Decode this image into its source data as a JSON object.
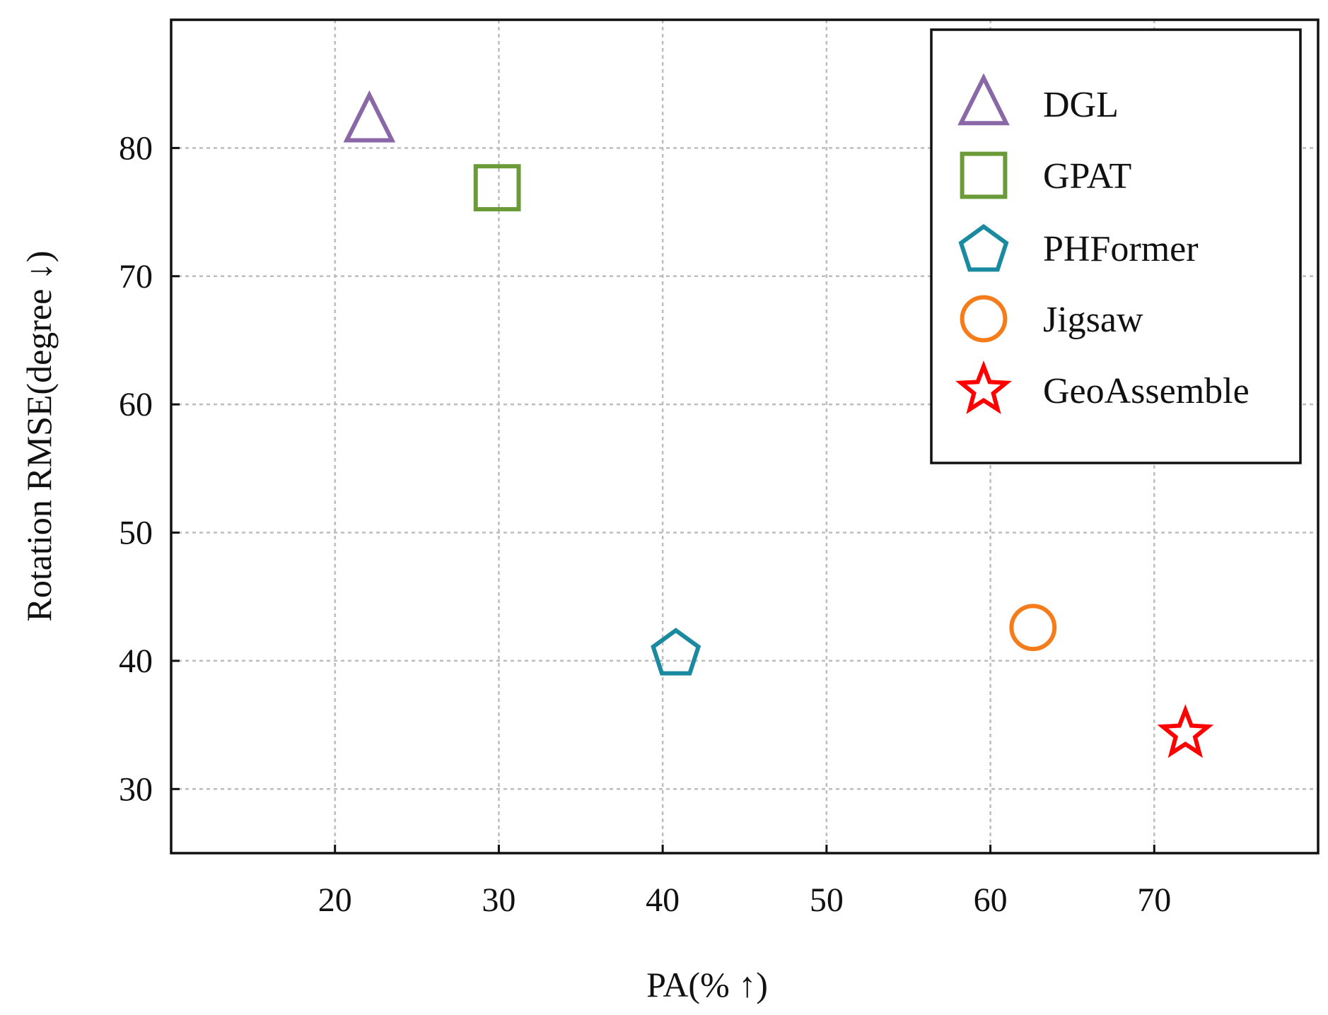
{
  "chart_data": {
    "type": "scatter",
    "title": "",
    "xlabel": "PA(% ↑)",
    "ylabel": "Rotation RMSE(degree ↓)",
    "xlim": [
      10,
      80
    ],
    "ylim": [
      25,
      90
    ],
    "xticks": [
      20,
      30,
      40,
      50,
      60,
      70
    ],
    "yticks": [
      30,
      40,
      50,
      60,
      70,
      80
    ],
    "grid": true,
    "legend_position": "top-right",
    "series": [
      {
        "name": "DGL",
        "marker": "triangle",
        "color": "#8a68a8",
        "x": 22.1,
        "y": 82.1
      },
      {
        "name": "GPAT",
        "marker": "square",
        "color": "#6b9a38",
        "x": 29.9,
        "y": 76.9
      },
      {
        "name": "PHFormer",
        "marker": "pentagon",
        "color": "#1a8aa0",
        "x": 40.8,
        "y": 40.7
      },
      {
        "name": "Jigsaw",
        "marker": "circle",
        "color": "#f57c1a",
        "x": 62.6,
        "y": 42.6
      },
      {
        "name": "GeoAssemble",
        "marker": "star",
        "color": "#ff0000",
        "x": 71.9,
        "y": 34.3
      }
    ]
  }
}
